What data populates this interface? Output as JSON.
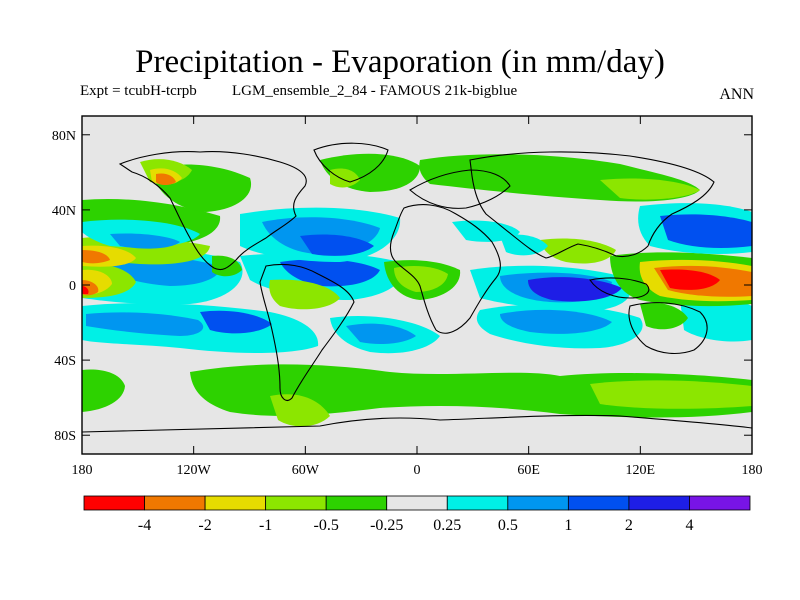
{
  "title": "Precipitation - Evaporation (in mm/day)",
  "subtitle_left": "Expt = tcubH-tcrpb",
  "subtitle_right": "LGM_ensemble_2_84 - FAMOUS 21k-bigblue",
  "season": "ANN",
  "map": {
    "projection": "cylindrical-equidistant",
    "lon_range": [
      -180,
      180
    ],
    "lat_range": [
      -90,
      90
    ],
    "background_color": "#e6e6e6",
    "lat_ticks": [
      {
        "lat": 80,
        "label": "80N"
      },
      {
        "lat": 40,
        "label": "40N"
      },
      {
        "lat": 0,
        "label": "0"
      },
      {
        "lat": -40,
        "label": "40S"
      },
      {
        "lat": -80,
        "label": "80S"
      }
    ],
    "lon_ticks": [
      {
        "lon": -180,
        "label": "180"
      },
      {
        "lon": -120,
        "label": "120W"
      },
      {
        "lon": -60,
        "label": "60W"
      },
      {
        "lon": 0,
        "label": "0"
      },
      {
        "lon": 60,
        "label": "60E"
      },
      {
        "lon": 120,
        "label": "120E"
      },
      {
        "lon": 180,
        "label": "180"
      }
    ]
  },
  "colorbar": {
    "colors": [
      "#ff0000",
      "#f07800",
      "#e6dc00",
      "#8ce600",
      "#2dd200",
      "#e6e6e6",
      "#00f0e6",
      "#0096f0",
      "#0050f0",
      "#1e1ee6",
      "#7814e6"
    ],
    "labels": [
      "-4",
      "-2",
      "-1",
      "-0.5",
      "-0.25",
      "0.25",
      "0.5",
      "1",
      "2",
      "4"
    ]
  }
}
